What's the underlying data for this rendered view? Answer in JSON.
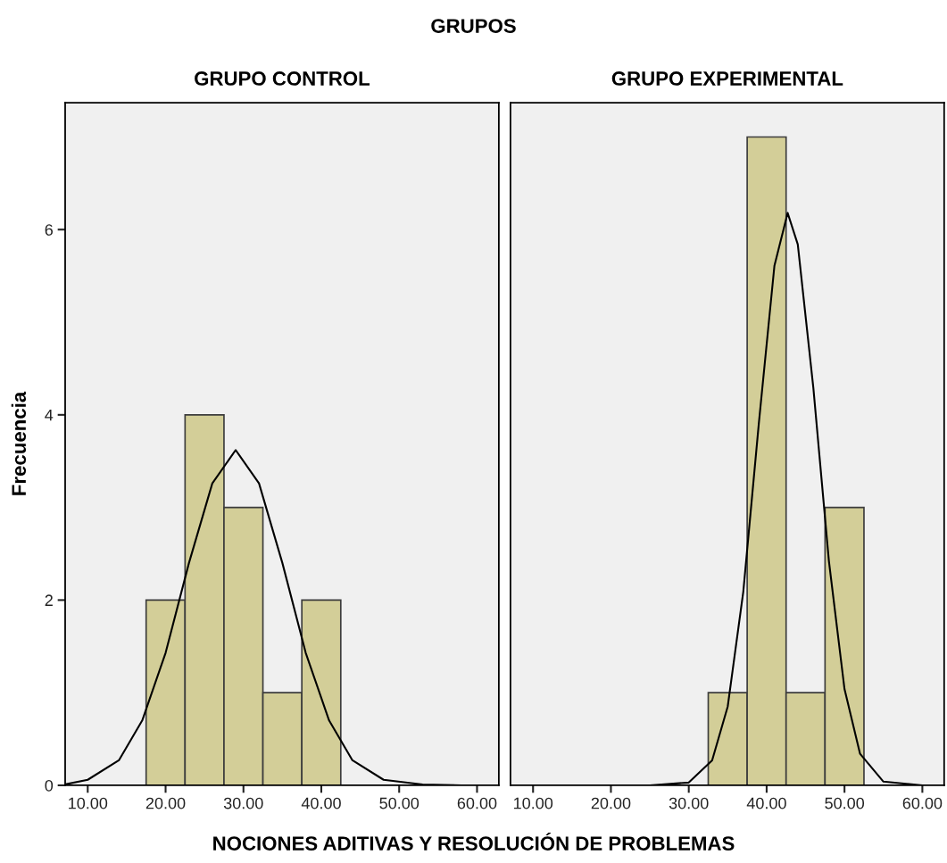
{
  "chart_data": [
    {
      "type": "histogram",
      "title": "GRUPO CONTROL",
      "xlabel": "NOCIONES ADITIVAS Y RESOLUCIÓN DE PROBLEMAS",
      "ylabel": "Frecuencia",
      "annotations": [
        "GRUPOS"
      ],
      "bins": [
        17.5,
        22.5,
        27.5,
        32.5,
        37.5,
        42.5
      ],
      "values": [
        2,
        4,
        3,
        1,
        2
      ],
      "color": "#d3ce98",
      "series": [
        {
          "type": "line",
          "color": "#000000",
          "x": [
            7.1,
            10,
            14,
            17,
            20,
            23,
            26,
            29,
            32,
            35,
            38,
            41,
            44,
            48,
            53,
            58,
            62.8
          ],
          "values": [
            0.01,
            0.06,
            0.27,
            0.7,
            1.43,
            2.4,
            3.26,
            3.62,
            3.26,
            2.4,
            1.43,
            0.7,
            0.27,
            0.06,
            0.01,
            0,
            0
          ]
        }
      ],
      "xlim": [
        7.1,
        62.8
      ],
      "ylim": [
        0,
        7.37
      ],
      "xticks": [
        {
          "value": 10,
          "label": "10.00"
        },
        {
          "value": 20,
          "label": "20.00"
        },
        {
          "value": 30,
          "label": "30.00"
        },
        {
          "value": 40,
          "label": "40.00"
        },
        {
          "value": 50,
          "label": "50.00"
        },
        {
          "value": 60,
          "label": "60.00"
        }
      ],
      "yticks": [
        0,
        2,
        4,
        6
      ],
      "grid": false,
      "legend": false
    },
    {
      "type": "histogram",
      "title": "GRUPO EXPERIMENTAL",
      "bins": [
        32.5,
        37.5,
        42.5,
        47.5,
        52.5
      ],
      "values": [
        1,
        7,
        1,
        3
      ],
      "color": "#d3ce98",
      "series": [
        {
          "type": "line",
          "color": "#000000",
          "x": [
            7.1,
            25,
            30,
            33,
            35,
            37,
            39,
            41,
            42.7,
            44,
            46,
            48,
            50,
            52,
            55,
            60,
            62.8
          ],
          "values": [
            0,
            0,
            0.03,
            0.27,
            0.85,
            2.09,
            3.91,
            5.61,
            6.18,
            5.84,
            4.29,
            2.42,
            1.04,
            0.34,
            0.04,
            0,
            0
          ]
        }
      ],
      "xlim": [
        7.1,
        62.8
      ],
      "ylim": [
        0,
        7.37
      ],
      "xticks": [
        {
          "value": 10,
          "label": "10.00"
        },
        {
          "value": 20,
          "label": "20.00"
        },
        {
          "value": 30,
          "label": "30.00"
        },
        {
          "value": 40,
          "label": "40.00"
        },
        {
          "value": 50,
          "label": "50.00"
        },
        {
          "value": 60,
          "label": "60.00"
        }
      ],
      "yticks": [
        0,
        2,
        4,
        6
      ],
      "tick_labels": "x",
      "grid": false,
      "legend": false
    }
  ]
}
